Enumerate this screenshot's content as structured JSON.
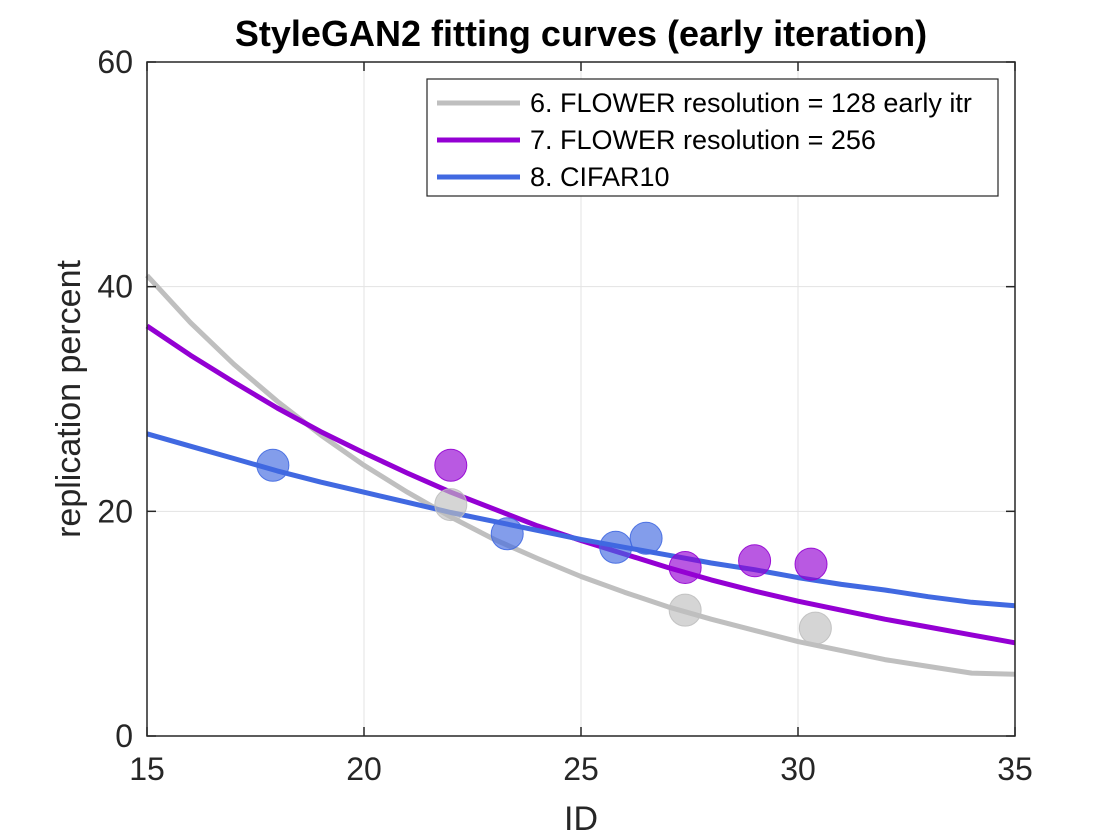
{
  "chart_data": {
    "type": "scatter",
    "title": "StyleGAN2 fitting curves (early iteration)",
    "xlabel": "ID",
    "ylabel": "replication percent",
    "xlim": [
      15,
      35
    ],
    "ylim": [
      0,
      60
    ],
    "xticks": [
      "15",
      "20",
      "25",
      "30",
      "35"
    ],
    "yticks": [
      "0",
      "20",
      "40",
      "60"
    ],
    "grid": true,
    "legend_position": "top-right",
    "series": [
      {
        "name": "6. FLOWER resolution = 128 early itr",
        "color": "#bfbfbf",
        "points": [
          [
            22.0,
            20.6
          ],
          [
            27.4,
            11.2
          ],
          [
            30.4,
            9.6
          ]
        ],
        "curve": [
          [
            15,
            41.0
          ],
          [
            16,
            36.8
          ],
          [
            17,
            33.1
          ],
          [
            18,
            29.8
          ],
          [
            19,
            26.8
          ],
          [
            20,
            24.1
          ],
          [
            21,
            21.7
          ],
          [
            22,
            19.5
          ],
          [
            23,
            17.5
          ],
          [
            24,
            15.8
          ],
          [
            25,
            14.2
          ],
          [
            26,
            12.8
          ],
          [
            27,
            11.5
          ],
          [
            28,
            10.4
          ],
          [
            29,
            9.4
          ],
          [
            30,
            8.4
          ],
          [
            31,
            7.6
          ],
          [
            32,
            6.8
          ],
          [
            33,
            6.2
          ],
          [
            34,
            5.6
          ],
          [
            35,
            5.5
          ]
        ]
      },
      {
        "name": "7. FLOWER resolution = 256",
        "color": "#9400d3",
        "points": [
          [
            22.0,
            24.1
          ],
          [
            27.4,
            15.0
          ],
          [
            29.0,
            15.6
          ],
          [
            30.3,
            15.3
          ]
        ],
        "curve": [
          [
            15,
            36.5
          ],
          [
            16,
            33.9
          ],
          [
            17,
            31.5
          ],
          [
            18,
            29.2
          ],
          [
            19,
            27.1
          ],
          [
            20,
            25.2
          ],
          [
            21,
            23.4
          ],
          [
            22,
            21.7
          ],
          [
            23,
            20.2
          ],
          [
            24,
            18.7
          ],
          [
            25,
            17.4
          ],
          [
            26,
            16.2
          ],
          [
            27,
            15.0
          ],
          [
            28,
            13.9
          ],
          [
            29,
            12.9
          ],
          [
            30,
            12.0
          ],
          [
            31,
            11.2
          ],
          [
            32,
            10.4
          ],
          [
            33,
            9.7
          ],
          [
            34,
            9.0
          ],
          [
            35,
            8.3
          ]
        ]
      },
      {
        "name": "8. CIFAR10",
        "color": "#4169e1",
        "points": [
          [
            17.9,
            24.1
          ],
          [
            23.3,
            18.0
          ],
          [
            25.8,
            16.8
          ],
          [
            26.5,
            17.6
          ]
        ],
        "curve": [
          [
            15,
            26.9
          ],
          [
            16,
            25.8
          ],
          [
            17,
            24.7
          ],
          [
            18,
            23.6
          ],
          [
            19,
            22.6
          ],
          [
            20,
            21.7
          ],
          [
            21,
            20.8
          ],
          [
            22,
            19.9
          ],
          [
            23,
            19.1
          ],
          [
            24,
            18.3
          ],
          [
            25,
            17.5
          ],
          [
            26,
            16.8
          ],
          [
            27,
            16.1
          ],
          [
            28,
            15.4
          ],
          [
            29,
            14.8
          ],
          [
            30,
            14.1
          ],
          [
            31,
            13.5
          ],
          [
            32,
            13.0
          ],
          [
            33,
            12.4
          ],
          [
            34,
            11.9
          ],
          [
            35,
            11.6
          ]
        ]
      }
    ]
  }
}
